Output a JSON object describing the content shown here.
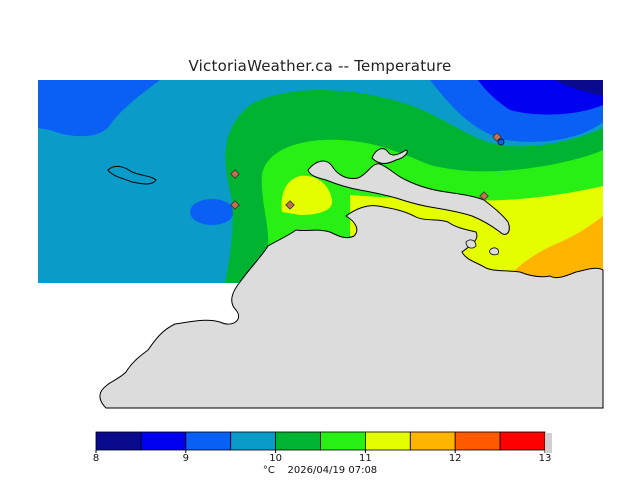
{
  "title": "VictoriaWeather.ca -- Temperature",
  "legend": {
    "unit": "°C",
    "timestamp": "2026/04/19 07:08",
    "ticks": [
      "8",
      "9",
      "10",
      "11",
      "12",
      "13"
    ],
    "bands": [
      {
        "from": 8.0,
        "to": 8.5,
        "color": "#0a0a8c"
      },
      {
        "from": 8.5,
        "to": 9.0,
        "color": "#0000f0"
      },
      {
        "from": 9.0,
        "to": 9.5,
        "color": "#0a5ff5"
      },
      {
        "from": 9.5,
        "to": 10.0,
        "color": "#0a9bc8"
      },
      {
        "from": 10.0,
        "to": 10.5,
        "color": "#00b432"
      },
      {
        "from": 10.5,
        "to": 11.0,
        "color": "#28f014"
      },
      {
        "from": 11.0,
        "to": 11.5,
        "color": "#e6ff00"
      },
      {
        "from": 11.5,
        "to": 12.0,
        "color": "#ffb400"
      },
      {
        "from": 12.0,
        "to": 12.5,
        "color": "#ff5a00"
      },
      {
        "from": 12.5,
        "to": 13.0,
        "color": "#ff0000"
      }
    ]
  },
  "colors": {
    "land": "#dcdcdc",
    "coastline": "#000000",
    "station": "#c07050"
  },
  "stations_count_shown": 5
}
